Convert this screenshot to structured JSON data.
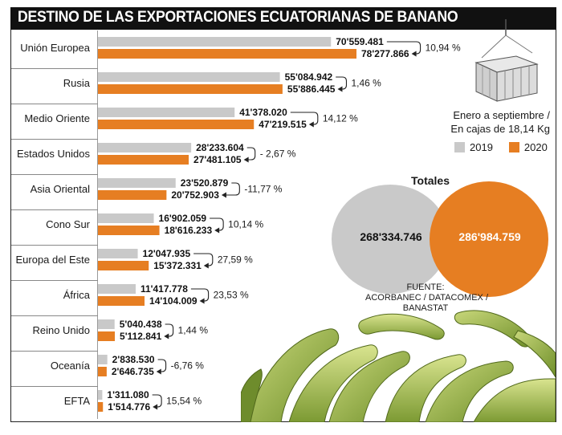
{
  "header": {
    "title": "DESTINO DE LAS EXPORTACIONES ECUATORIANAS DE BANANO"
  },
  "info": {
    "period_line1": "Enero a septiembre /",
    "period_line2": "En cajas de 18,14 Kg"
  },
  "legend": [
    {
      "label": "2019",
      "color": "#c9c9c9"
    },
    {
      "label": "2020",
      "color": "#e67e22"
    }
  ],
  "totals": {
    "title": "Totales",
    "value_2019": "268'334.746",
    "value_2020": "286'984.759"
  },
  "source": {
    "line1": "FUENTE:",
    "line2": "ACORBANEC / DATACOMEX /",
    "line3": "BANASTAT"
  },
  "chart_data": {
    "type": "bar",
    "orientation": "horizontal",
    "title": "DESTINO DE LAS EXPORTACIONES ECUATORIANAS DE BANANO",
    "categories": [
      "Unión Europea",
      "Rusia",
      "Medio Oriente",
      "Estados Unidos",
      "Asia Oriental",
      "Cono Sur",
      "Europa del Este",
      "África",
      "Reino Unido",
      "Oceanía",
      "EFTA"
    ],
    "series": [
      {
        "name": "2019",
        "color": "#c9c9c9",
        "values": [
          70559481,
          55084942,
          41378020,
          28233604,
          23520879,
          16902059,
          12047935,
          11417778,
          5040438,
          2838530,
          1311080
        ],
        "labels": [
          "70'559.481",
          "55'084.942",
          "41'378.020",
          "28'233.604",
          "23'520.879",
          "16'902.059",
          "12'047.935",
          "11'417.778",
          "5'040.438",
          "2'838.530",
          "1'311.080"
        ]
      },
      {
        "name": "2020",
        "color": "#e67e22",
        "values": [
          78277866,
          55886445,
          47219515,
          27481105,
          20752903,
          18616233,
          15372331,
          14104009,
          5112841,
          2646735,
          1514776
        ],
        "labels": [
          "78'277.866",
          "55'886.445",
          "47'219.515",
          "27'481.105",
          "20'752.903",
          "18'616.233",
          "15'372.331",
          "14'104.009",
          "5'112.841",
          "2'646.735",
          "1'514.776"
        ]
      }
    ],
    "changes": [
      "10,94 %",
      "1,46 %",
      "14,12 %",
      "- 2,67 %",
      "-11,77 %",
      "10,14 %",
      "27,59 %",
      "23,53 %",
      "1,44 %",
      "-6,76 %",
      "15,54 %"
    ],
    "xlim": [
      0,
      78277866
    ],
    "grid": false
  }
}
